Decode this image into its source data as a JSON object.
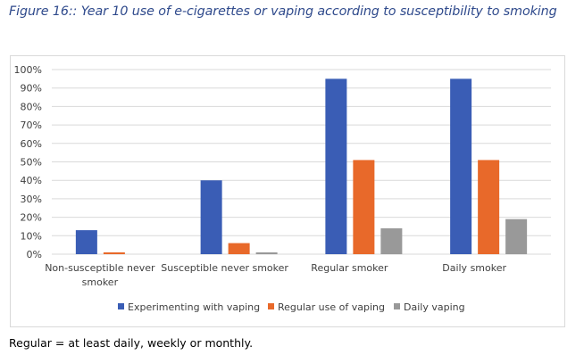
{
  "title": "Figure 16:: Year 10 use of e-cigarettes or vaping according to susceptibility to smoking",
  "footnote": "Regular = at least daily, weekly or monthly.",
  "chart_data": {
    "type": "bar",
    "title": "",
    "xlabel": "",
    "ylabel": "",
    "ylim": [
      0,
      100
    ],
    "yticks": [
      "0%",
      "10%",
      "20%",
      "30%",
      "40%",
      "50%",
      "60%",
      "70%",
      "80%",
      "90%",
      "100%"
    ],
    "grid": true,
    "legend_position": "bottom",
    "categories": [
      [
        "Non-susceptible never",
        "smoker"
      ],
      [
        "Susceptible never smoker"
      ],
      [
        "Regular smoker"
      ],
      [
        "Daily smoker"
      ]
    ],
    "series": [
      {
        "name": "Experimenting with vaping",
        "color": "#3a5db5",
        "values": [
          13,
          40,
          95,
          95
        ]
      },
      {
        "name": "Regular use of vaping",
        "color": "#e8692a",
        "values": [
          1,
          6,
          51,
          51
        ]
      },
      {
        "name": "Daily vaping",
        "color": "#999999",
        "values": [
          0,
          1,
          14,
          19
        ]
      }
    ]
  }
}
